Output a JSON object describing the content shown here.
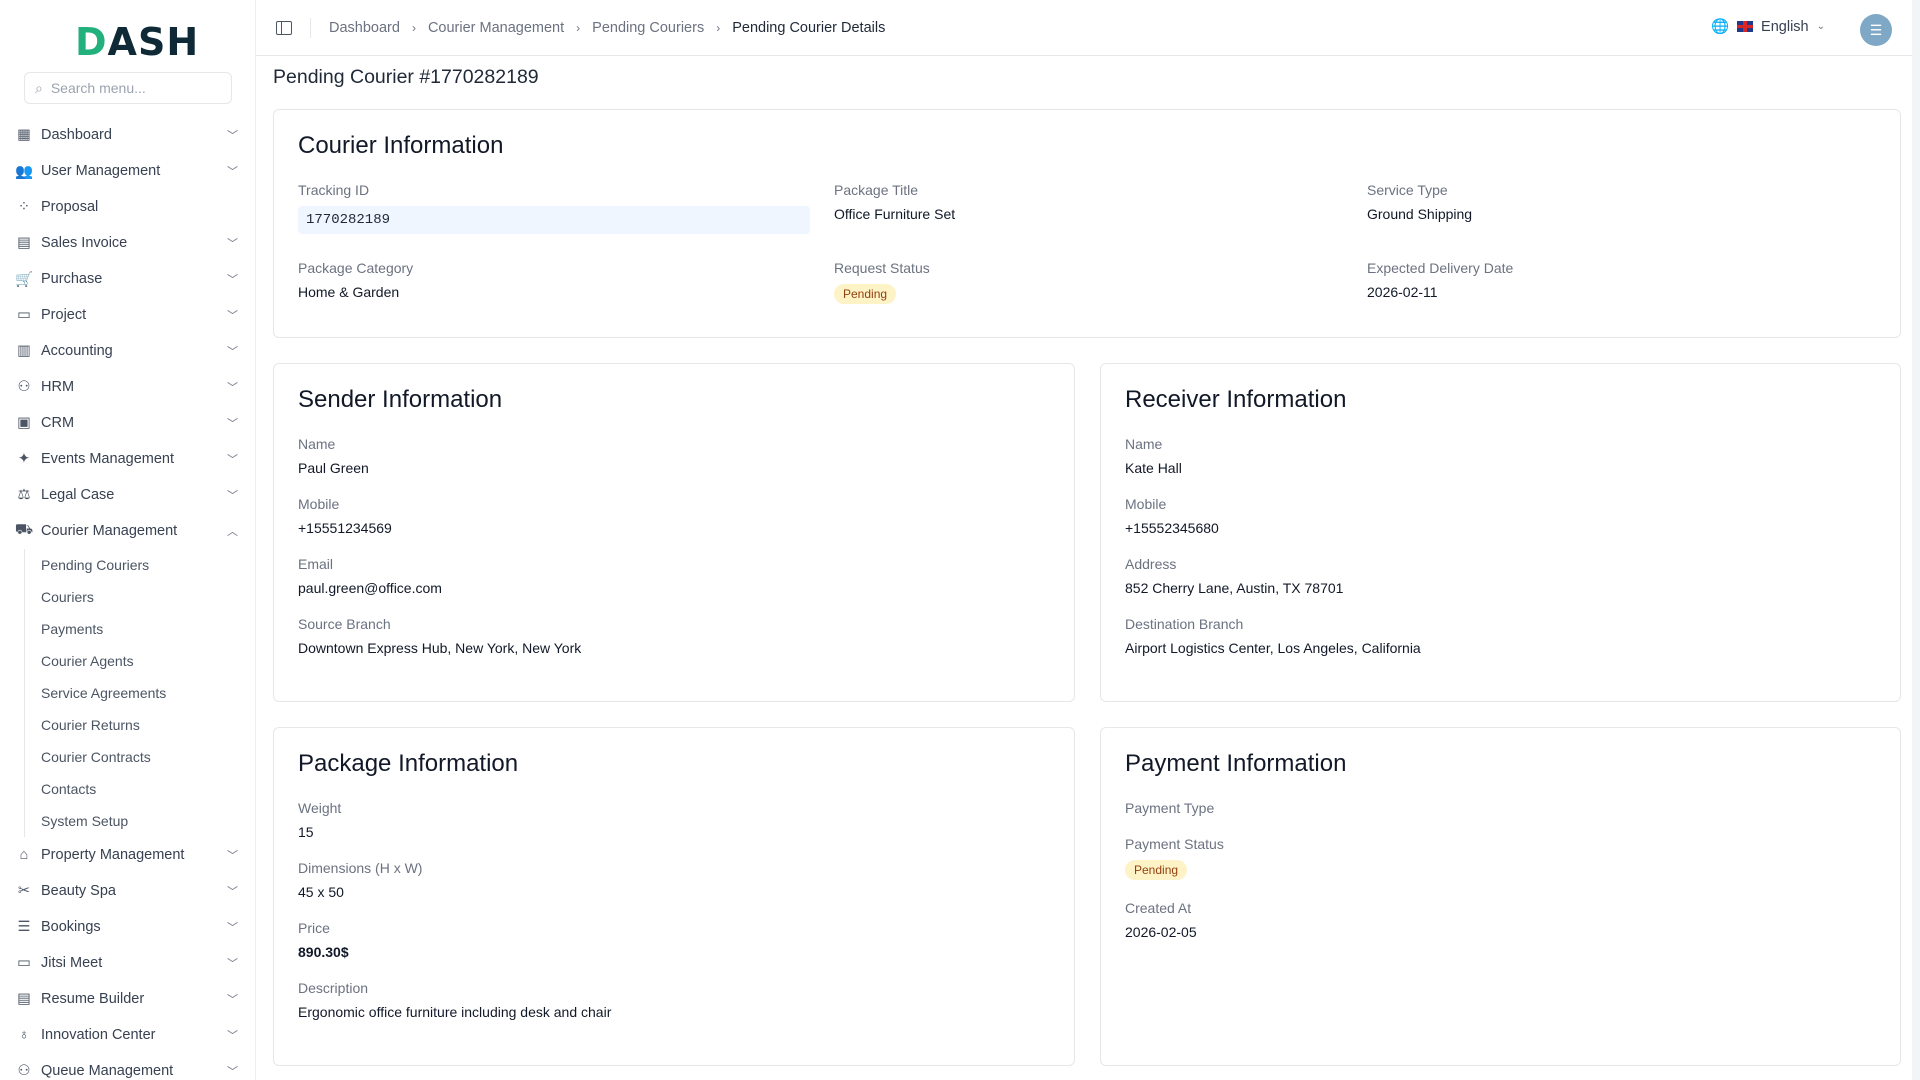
{
  "app": {
    "logo": "DASH",
    "search_placeholder": "Search menu..."
  },
  "sidebar": {
    "items": [
      {
        "label": "Dashboard",
        "icon": "grid-icon"
      },
      {
        "label": "User Management",
        "icon": "users-icon"
      },
      {
        "label": "Proposal",
        "icon": "proposal-icon"
      },
      {
        "label": "Sales Invoice",
        "icon": "invoice-icon"
      },
      {
        "label": "Purchase",
        "icon": "cart-icon"
      },
      {
        "label": "Project",
        "icon": "folder-icon"
      },
      {
        "label": "Accounting",
        "icon": "calculator-icon"
      },
      {
        "label": "HRM",
        "icon": "hrm-icon"
      },
      {
        "label": "CRM",
        "icon": "crm-icon"
      },
      {
        "label": "Events Management",
        "icon": "party-icon"
      },
      {
        "label": "Legal Case",
        "icon": "scale-icon"
      },
      {
        "label": "Courier Management",
        "icon": "truck-icon"
      }
    ],
    "courier_sub": [
      "Pending Couriers",
      "Couriers",
      "Payments",
      "Courier Agents",
      "Service Agreements",
      "Courier Returns",
      "Courier Contracts",
      "Contacts",
      "System Setup"
    ],
    "items_after": [
      {
        "label": "Property Management",
        "icon": "property-icon"
      },
      {
        "label": "Beauty Spa",
        "icon": "scissors-icon"
      },
      {
        "label": "Bookings",
        "icon": "list-icon"
      },
      {
        "label": "Jitsi Meet",
        "icon": "monitor-icon"
      },
      {
        "label": "Resume Builder",
        "icon": "document-icon"
      },
      {
        "label": "Innovation Center",
        "icon": "lightbulb-icon"
      },
      {
        "label": "Queue Management",
        "icon": "queue-icon"
      }
    ]
  },
  "breadcrumb": [
    "Dashboard",
    "Courier Management",
    "Pending Couriers",
    "Pending Courier Details"
  ],
  "header": {
    "language": "English"
  },
  "page_title": "Pending Courier #1770282189",
  "courier": {
    "title": "Courier Information",
    "tracking_id_label": "Tracking ID",
    "tracking_id": "1770282189",
    "package_title_label": "Package Title",
    "package_title": "Office Furniture Set",
    "service_type_label": "Service Type",
    "service_type": "Ground Shipping",
    "package_category_label": "Package Category",
    "package_category": "Home & Garden",
    "request_status_label": "Request Status",
    "request_status": "Pending",
    "expected_delivery_label": "Expected Delivery Date",
    "expected_delivery": "2026-02-11"
  },
  "sender": {
    "title": "Sender Information",
    "name_label": "Name",
    "name": "Paul Green",
    "mobile_label": "Mobile",
    "mobile": "+15551234569",
    "email_label": "Email",
    "email": "paul.green@office.com",
    "branch_label": "Source Branch",
    "branch": "Downtown Express Hub, New York, New York"
  },
  "receiver": {
    "title": "Receiver Information",
    "name_label": "Name",
    "name": "Kate Hall",
    "mobile_label": "Mobile",
    "mobile": "+15552345680",
    "address_label": "Address",
    "address": "852 Cherry Lane, Austin, TX 78701",
    "branch_label": "Destination Branch",
    "branch": "Airport Logistics Center, Los Angeles, California"
  },
  "package": {
    "title": "Package Information",
    "weight_label": "Weight",
    "weight": "15",
    "dimensions_label": "Dimensions (H x W)",
    "dimensions": "45 x 50",
    "price_label": "Price",
    "price": "890.30$",
    "description_label": "Description",
    "description": "Ergonomic office furniture including desk and chair"
  },
  "payment": {
    "title": "Payment Information",
    "type_label": "Payment Type",
    "status_label": "Payment Status",
    "status": "Pending",
    "created_label": "Created At",
    "created": "2026-02-05"
  },
  "colors": {
    "brand_green": "#22b07d",
    "brand_dark": "#0f2a36",
    "pending_bg": "#fef3c7",
    "pending_text": "#92400e"
  }
}
